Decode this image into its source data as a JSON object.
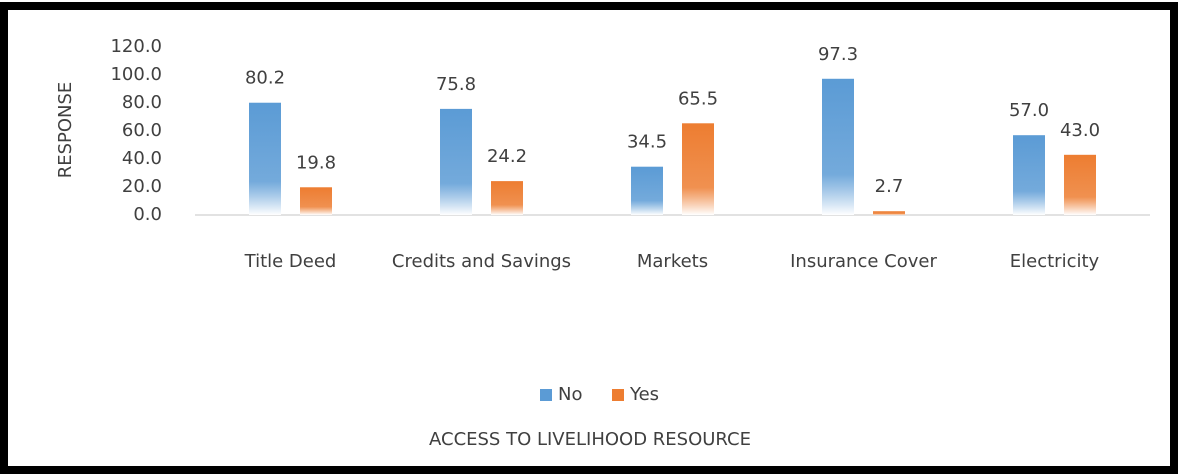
{
  "chart_data": {
    "type": "bar",
    "categories": [
      "Title Deed",
      "Credits and Savings",
      "Markets",
      "Insurance Cover",
      "Electricity"
    ],
    "series": [
      {
        "name": "No",
        "color": "#5b9bd5",
        "values": [
          80.2,
          75.8,
          34.5,
          97.3,
          57.0
        ],
        "value_labels": [
          "80.2",
          "75.8",
          "34.5",
          "97.3",
          "57.0"
        ]
      },
      {
        "name": "Yes",
        "color": "#ed7d31",
        "values": [
          19.8,
          24.2,
          65.5,
          2.7,
          43.0
        ],
        "value_labels": [
          "19.8",
          "24.2",
          "65.5",
          "2.7",
          "43.0"
        ]
      }
    ],
    "ylabel": "RESPONSE",
    "xlabel": "ACCESS TO LIVELIHOOD RESOURCE",
    "ylim": [
      0,
      120
    ],
    "yticks": [
      {
        "value": 0,
        "label": "0.0"
      },
      {
        "value": 20,
        "label": "20.0"
      },
      {
        "value": 40,
        "label": "40.0"
      },
      {
        "value": 60,
        "label": "60.0"
      },
      {
        "value": 80,
        "label": "80.0"
      },
      {
        "value": 100,
        "label": "100.0"
      },
      {
        "value": 120,
        "label": "120.0"
      }
    ],
    "grid": false,
    "legend": "bottom"
  }
}
